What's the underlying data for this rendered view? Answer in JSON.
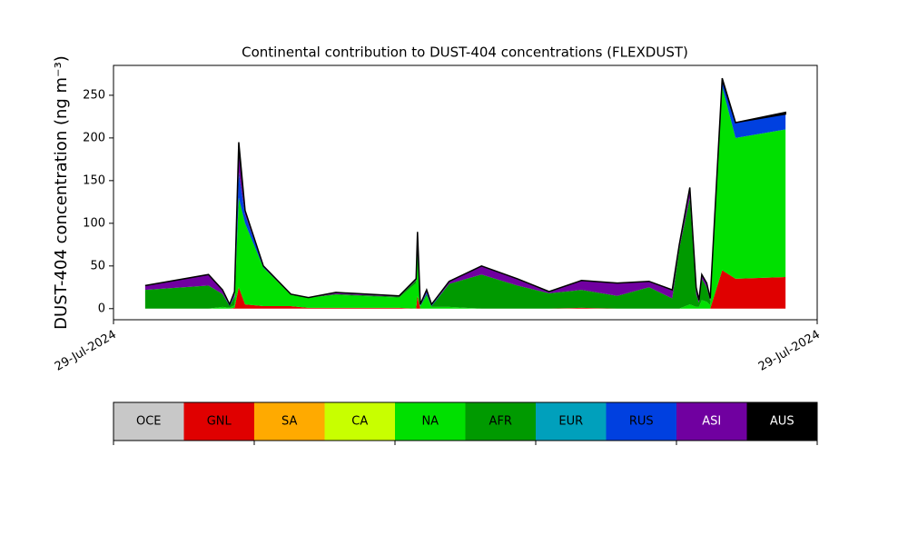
{
  "chart_data": {
    "type": "stacked_area",
    "title": "Continental contribution to DUST-404 concentrations (FLEXDUST)",
    "y_label": "DUST-404 concentration (ng m⁻³)",
    "x": [
      0.045,
      0.135,
      0.155,
      0.165,
      0.172,
      0.178,
      0.187,
      0.213,
      0.252,
      0.277,
      0.316,
      0.406,
      0.43,
      0.432,
      0.436,
      0.445,
      0.452,
      0.477,
      0.523,
      0.574,
      0.619,
      0.665,
      0.716,
      0.761,
      0.794,
      0.804,
      0.819,
      0.828,
      0.832,
      0.836,
      0.843,
      0.848,
      0.865,
      0.884,
      0.955
    ],
    "xlim": [
      0,
      1
    ],
    "xticks": [
      {
        "value": 0,
        "label": "29-Jul-2024"
      },
      {
        "value": 1,
        "label": "29-Jul-2024"
      }
    ],
    "ylim": [
      -13,
      285
    ],
    "yticks": [
      0,
      50,
      100,
      150,
      200,
      250
    ],
    "series": [
      {
        "name": "OCE",
        "color": "#c8c8c8",
        "values": [
          0,
          0,
          0,
          0,
          0,
          0,
          0,
          0,
          0,
          0,
          0,
          0,
          0,
          0,
          0,
          0,
          0,
          0,
          0,
          0,
          0,
          0,
          0,
          0,
          0,
          0,
          0,
          0,
          0,
          0,
          0,
          0,
          0,
          0,
          0
        ]
      },
      {
        "name": "GNL",
        "color": "#e00000",
        "values": [
          0,
          0,
          0,
          0,
          1,
          25,
          5,
          3,
          3,
          1,
          1,
          1,
          0,
          15,
          0,
          0,
          0,
          0,
          0,
          0,
          0,
          1,
          0,
          0,
          0,
          0,
          0,
          0,
          0,
          0,
          0,
          0,
          45,
          35,
          37
        ]
      },
      {
        "name": "SA",
        "color": "#ffaa00",
        "values": [
          0,
          0,
          0,
          0,
          0,
          0,
          0,
          0,
          0,
          0,
          0,
          0,
          0,
          0,
          0,
          0,
          0,
          0,
          0,
          0,
          0,
          0,
          0,
          0,
          0,
          0,
          0,
          0,
          0,
          0,
          0,
          0,
          0,
          0,
          0
        ]
      },
      {
        "name": "CA",
        "color": "#c8ff00",
        "values": [
          0,
          0,
          0,
          0,
          0,
          0,
          0,
          0,
          0,
          0,
          0,
          0,
          0,
          0,
          0,
          0,
          0,
          0,
          0,
          0,
          0,
          0,
          0,
          0,
          0,
          0,
          0,
          0,
          0,
          0,
          0,
          0,
          0,
          0,
          0
        ]
      },
      {
        "name": "NA",
        "color": "#00e000",
        "values": [
          0,
          0,
          2,
          1,
          3,
          105,
          95,
          45,
          13,
          12,
          15,
          12,
          30,
          50,
          3,
          15,
          2,
          2,
          0,
          0,
          0,
          0,
          0,
          0,
          0,
          0,
          5,
          2,
          2,
          10,
          8,
          4,
          215,
          165,
          173
        ]
      },
      {
        "name": "AFR",
        "color": "#009a00",
        "values": [
          22,
          27,
          15,
          2,
          10,
          0,
          0,
          0,
          1,
          0,
          1,
          1,
          3,
          0,
          0,
          2,
          1,
          27,
          40,
          27,
          18,
          21,
          15,
          25,
          12,
          70,
          125,
          15,
          5,
          25,
          17,
          5,
          0,
          0,
          0
        ]
      },
      {
        "name": "EUR",
        "color": "#00a0bc",
        "values": [
          0,
          0,
          0,
          0,
          0,
          0,
          0,
          0,
          0,
          0,
          0,
          0,
          0,
          0,
          0,
          0,
          0,
          0,
          0,
          0,
          0,
          0,
          0,
          0,
          0,
          0,
          0,
          0,
          0,
          0,
          0,
          0,
          0,
          0,
          0
        ]
      },
      {
        "name": "RUS",
        "color": "#0040e0",
        "values": [
          0,
          0,
          0,
          1,
          1,
          30,
          10,
          2,
          0,
          0,
          0,
          0,
          0,
          10,
          1,
          2,
          1,
          0,
          0,
          0,
          0,
          0,
          0,
          0,
          0,
          0,
          0,
          0,
          0,
          0,
          0,
          0,
          8,
          18,
          18
        ]
      },
      {
        "name": "ASI",
        "color": "#7000a0",
        "values": [
          5,
          13,
          5,
          1,
          5,
          30,
          5,
          0,
          0,
          0,
          2,
          1,
          2,
          10,
          1,
          3,
          1,
          3,
          10,
          8,
          2,
          11,
          15,
          7,
          10,
          5,
          12,
          8,
          3,
          5,
          5,
          3,
          0,
          0,
          0
        ]
      },
      {
        "name": "AUS",
        "color": "#000000",
        "values": [
          0,
          0,
          0,
          0,
          0,
          5,
          0,
          0,
          0,
          0,
          0,
          0,
          0,
          5,
          0,
          0,
          0,
          0,
          0,
          0,
          0,
          0,
          0,
          0,
          0,
          0,
          0,
          0,
          0,
          0,
          0,
          0,
          2,
          0,
          2
        ]
      }
    ]
  }
}
